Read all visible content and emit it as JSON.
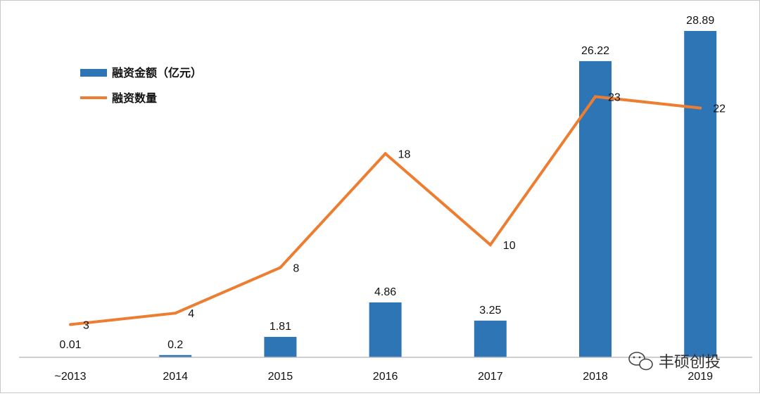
{
  "chart_data": {
    "type": "bar",
    "categories": [
      "~2013",
      "2014",
      "2015",
      "2016",
      "2017",
      "2018",
      "2019"
    ],
    "series": [
      {
        "name": "融资金额（亿元）",
        "type": "bar",
        "color": "#2E75B6",
        "values": [
          0.01,
          0.2,
          1.81,
          4.86,
          3.25,
          26.22,
          28.89
        ],
        "labels": [
          "0.01",
          "0.2",
          "1.81",
          "4.86",
          "3.25",
          "26.22",
          "28.89"
        ]
      },
      {
        "name": "融资数量",
        "type": "line",
        "color": "#ED7D31",
        "values": [
          3,
          4,
          8,
          18,
          10,
          23,
          22
        ],
        "labels": [
          "3",
          "4",
          "8",
          "18",
          "10",
          "23",
          "22"
        ]
      }
    ],
    "y_bar_range": [
      0,
      30
    ],
    "y_line_range": [
      0,
      35
    ],
    "grid": false,
    "legend_position": "top-left"
  },
  "watermark": {
    "text": "丰硕创投",
    "icon": "wechat-icon"
  }
}
